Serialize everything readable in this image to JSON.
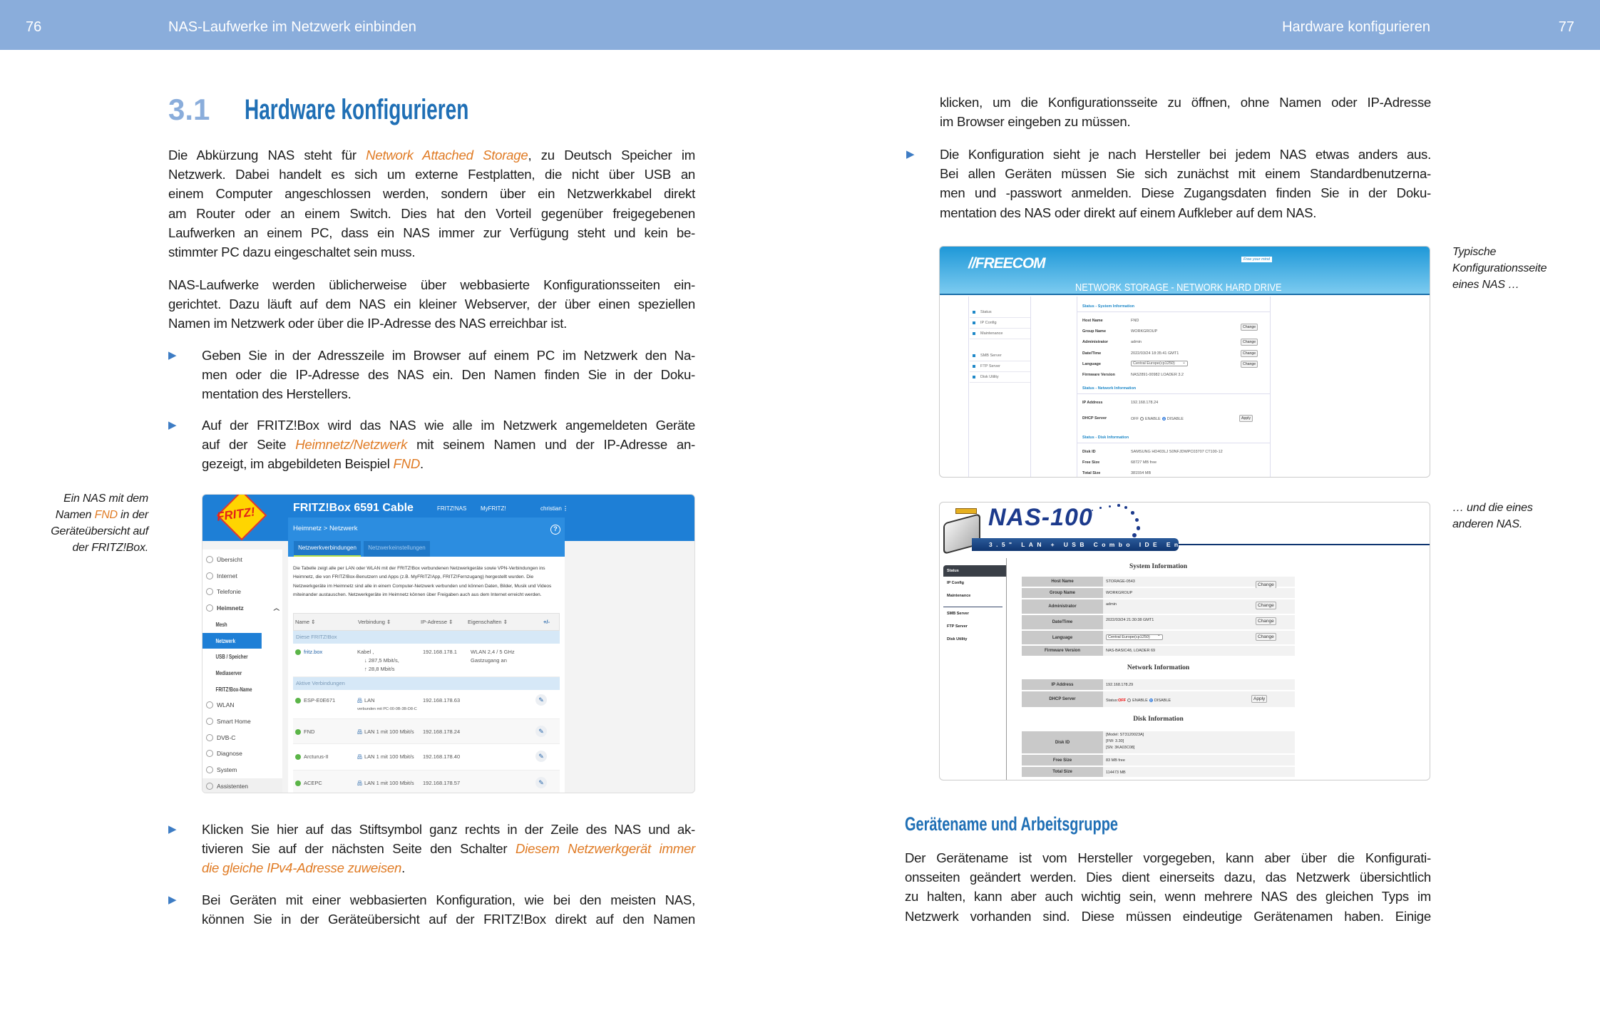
{
  "header": {
    "left_page": "76",
    "left_title": "NAS-Laufwerke im Netzwerk einbinden",
    "right_title": "Hardware konfigurieren",
    "right_page": "77"
  },
  "colors": {
    "header": "#8aaddb",
    "heading": "#1f6fb5",
    "accent": "#e07b24",
    "bullet": "#3d7cc4"
  },
  "section": {
    "number": "3.1",
    "title": "Hardware konfigurieren"
  },
  "left": {
    "p1": [
      [
        "Die Abkürzung NAS steht für ",
        {
          "em": "Network Attached Storage"
        },
        ", zu Deutsch Speicher im"
      ],
      [
        "Netzwerk. Dabei handelt es sich um externe Festplatten, die nicht über USB an"
      ],
      [
        "einem Computer angeschlossen werden, sondern über ein Netzwerkkabel direkt"
      ],
      [
        "am Router oder an einem Switch. Dies hat den Vorteil gegenüber freigegebenen"
      ],
      [
        "Laufwerken an einem PC, dass ein NAS immer zur Verfügung steht und kein be-"
      ],
      [
        "stimmter PC dazu eingeschaltet sein muss."
      ]
    ],
    "p2": [
      [
        "NAS-Laufwerke werden üblicherweise über webbasierte Konfigurationsseiten ein-"
      ],
      [
        "gerichtet. Dazu läuft auf dem NAS ein kleiner Webserver, der über einen speziellen"
      ],
      [
        "Namen im Netzwerk oder über die IP-Adresse des NAS erreichbar ist."
      ]
    ],
    "b1": [
      [
        "Geben Sie in der Adresszeile im Browser auf einem PC im Netzwerk den Na-"
      ],
      [
        "men oder die IP-Adresse des NAS ein. Den Namen finden Sie in der Doku-"
      ],
      [
        "mentation des Herstellers."
      ]
    ],
    "b2": [
      [
        "Auf der FRITZ!Box wird das NAS wie alle im Netzwerk angemeldeten Geräte"
      ],
      [
        "auf der Seite ",
        {
          "em": "Heimnetz/Netzwerk"
        },
        " mit seinem Namen und der IP-Adresse an-"
      ],
      [
        "gezeigt, im abgebildeten Beispiel ",
        {
          "em": "FND"
        },
        "."
      ]
    ],
    "b3": [
      [
        "Klicken Sie hier auf das Stiftsymbol ganz rechts in der Zeile des NAS und ak-"
      ],
      [
        "tivieren Sie auf der nächsten Seite den Schalter ",
        {
          "em": "Diesem Netzwerkgerät immer"
        }
      ],
      [
        {
          "em": "die gleiche IPv4-Adresse zuweisen"
        },
        "."
      ]
    ],
    "b4": [
      [
        "Bei Geräten mit einer webbasierten Konfiguration, wie bei den meisten NAS,"
      ],
      [
        "können Sie in der Geräteübersicht auf der FRITZ!Box direkt auf den Namen"
      ]
    ],
    "note": [
      [
        "Ein NAS mit dem"
      ],
      [
        "Namen ",
        {
          "em": "FND"
        },
        " in der"
      ],
      [
        "Geräteübersicht auf"
      ],
      [
        "der FRITZ!Box."
      ]
    ]
  },
  "right": {
    "cont": [
      [
        "klicken, um die Konfigurationsseite zu öffnen, ohne Namen oder IP-Adresse"
      ],
      [
        "im Browser eingeben zu müssen."
      ]
    ],
    "b5": [
      [
        "Die Konfiguration sieht je nach Hersteller bei jedem NAS etwas anders aus."
      ],
      [
        "Bei allen Geräten müssen Sie sich zunächst mit einem Standardbenutzerna-"
      ],
      [
        "men und -passwort anmelden. Diese Zugangsdaten finden Sie in der Doku-"
      ],
      [
        "mentation des NAS oder direkt auf einem Aufkleber auf dem NAS."
      ]
    ],
    "subheading": "Gerätename und Arbeitsgruppe",
    "p3": [
      [
        "Der Gerätename ist vom Hersteller vorgegeben, kann aber über die Konfigurati-"
      ],
      [
        "onsseiten geändert werden. Dies dient einerseits dazu, das Netzwerk übersichtlich"
      ],
      [
        "zu halten, kann aber auch wichtig sein, wenn mehrere NAS des gleichen Typs im"
      ],
      [
        "Netzwerk vorhanden sind. Diese müssen eindeutige Gerätenamen haben. Einige"
      ]
    ],
    "note1": [
      [
        "Typische"
      ],
      [
        "Konfigurationsseite"
      ],
      [
        "eines NAS …"
      ]
    ],
    "note2": [
      [
        "… und die eines"
      ],
      [
        "anderen NAS."
      ]
    ]
  },
  "fritz": {
    "logo": "FRITZ!",
    "title": "FRITZ!Box 6591 Cable",
    "nav": [
      "FRITZ!NAS",
      "MyFRITZ!"
    ],
    "user": "christian",
    "breadcrumb": "Heimnetz > Netzwerk",
    "tabs": [
      "Netzwerkverbindungen",
      "Netzwerkeinstellungen"
    ],
    "sidebar": [
      {
        "label": "Übersicht"
      },
      {
        "label": "Internet"
      },
      {
        "label": "Telefonie"
      },
      {
        "label": "Heimnetz",
        "expanded": true
      },
      {
        "label": "Mesh",
        "sub": true
      },
      {
        "label": "Netzwerk",
        "sub": true,
        "selected": true
      },
      {
        "label": "USB / Speicher",
        "sub": true
      },
      {
        "label": "Mediaserver",
        "sub": true
      },
      {
        "label": "FRITZ!Box-Name",
        "sub": true
      },
      {
        "label": "WLAN"
      },
      {
        "label": "Smart Home"
      },
      {
        "label": "DVB-C"
      },
      {
        "label": "Diagnose"
      },
      {
        "label": "System"
      },
      {
        "label": "Assistenten"
      }
    ],
    "description": "Die Tabelle zeigt alle per LAN oder WLAN mit der FRITZ!Box verbundenen Netzwerkgeräte sowie VPN-Verbindungen ins Heimnetz, die von FRITZ!Box-Benutzern und Apps (z.B. MyFRITZ!App, FRITZ!Fernzugang) hergestellt wurden. Die Netzwerkgeräte im Heimnetz sind alle in einem Computer-Netzwerk verbunden und können Daten, Bilder, Musik und Videos miteinander austauschen. Netzwerkgeräte im Heimnetz können über Freigaben auch aus dem Internet erreicht werden.",
    "columns": [
      "Name ⇕",
      "Verbindung ⇕",
      "IP-Adresse ⇕",
      "Eigenschaften ⇕"
    ],
    "group1": "Diese FRITZ!Box",
    "box": {
      "name": "fritz.box",
      "conn": "Kabel ,",
      "down": "↓ 287,5 Mbit/s,",
      "up": "↑ 28,8 Mbit/s",
      "ip": "192.168.178.1",
      "prop1": "WLAN 2,4 / 5 GHz",
      "prop2": "Gastzugang an"
    },
    "group2": "Aktive Verbindungen",
    "devices": [
      {
        "name": "ESP-E0E671",
        "conn": "LAN",
        "sub": "verbunden mit PC-00-0B-3B-D8-C",
        "ip": "192.168.178.63"
      },
      {
        "name": "FND",
        "conn": "LAN 1 mit 100 Mbit/s",
        "ip": "192.168.178.24"
      },
      {
        "name": "Arcturus-II",
        "conn": "LAN 1 mit 100 Mbit/s",
        "ip": "192.168.178.40"
      },
      {
        "name": "ACEPC",
        "conn": "LAN 1 mit 100 Mbit/s",
        "ip": "192.168.178.57"
      }
    ]
  },
  "freecom": {
    "logo": "//FREECOM",
    "tagline": "Free your mind",
    "title": "NETWORK STORAGE - NETWORK HARD DRIVE",
    "menu1": [
      "Status",
      "IP Config",
      "Maintenance"
    ],
    "menu2": [
      "SMB Server",
      "FTP Server",
      "Disk Utility"
    ],
    "sec_system": "Status - System Information",
    "sec_network": "Status - Network Information",
    "sec_disk": "Status - Disk Information",
    "rows": [
      [
        "Host Name",
        "FND"
      ],
      [
        "Group Name",
        "WORKGROUP"
      ],
      [
        "Administrator",
        "admin"
      ],
      [
        "Date/Time",
        "2022/03/24 18:35:41 GMT1"
      ],
      [
        "Language",
        "Central Europe(cp1250)"
      ],
      [
        "Firmware Version",
        "NAS2891-00982 LOADER 3.2"
      ]
    ],
    "ip_label": "IP Address",
    "ip": "192.168.178.24",
    "dhcp_label": "DHCP Server",
    "dhcp_off": "OFF",
    "enable": "ENABLE",
    "disable": "DISABLE",
    "disk": [
      [
        "Disk ID",
        "SAMSUNG HD403LJ S0NFJDWPC03707 CT100-12"
      ],
      [
        "Free Size",
        "68727 MB free"
      ],
      [
        "Total Size",
        "381554 MB"
      ]
    ],
    "change": "Change",
    "apply": "Apply"
  },
  "nas100": {
    "logo": "NAS-100",
    "subtitle": "3.5\" LAN + USB Combo IDE Enclosure",
    "menu": [
      "Status",
      "IP Config",
      "Maintenance",
      "SMB Server",
      "FTP Server",
      "Disk Utility"
    ],
    "h_system": "System Information",
    "h_network": "Network Information",
    "h_disk": "Disk Information",
    "rows": [
      [
        "Host Name",
        "STORAGE-0543"
      ],
      [
        "Group Name",
        "WORKGROUP"
      ],
      [
        "Administrator",
        "admin"
      ],
      [
        "Date/Time",
        "2022/03/24 21:30:38 GMT1"
      ],
      [
        "Language",
        "Central Europe(cp1250)"
      ],
      [
        "Firmware Version",
        "NAS-BASIC48, LOADER 69"
      ]
    ],
    "ip_label": "IP Address",
    "ip": "192.168.178.29",
    "dhcp_label": "DHCP Server",
    "status": "Status:",
    "status_off": "OFF",
    "enable": "ENABLE",
    "disable": "DISABLE",
    "disk_label": "Disk ID",
    "disk_id": [
      "[Model: ST3120023A]",
      "[FW: 3.30]",
      "[SN: 3KA03C08]"
    ],
    "free_label": "Free Size",
    "free": "83 MB free",
    "total_label": "Total Size",
    "total": "114473 MB",
    "change": "Change",
    "apply": "Apply"
  }
}
